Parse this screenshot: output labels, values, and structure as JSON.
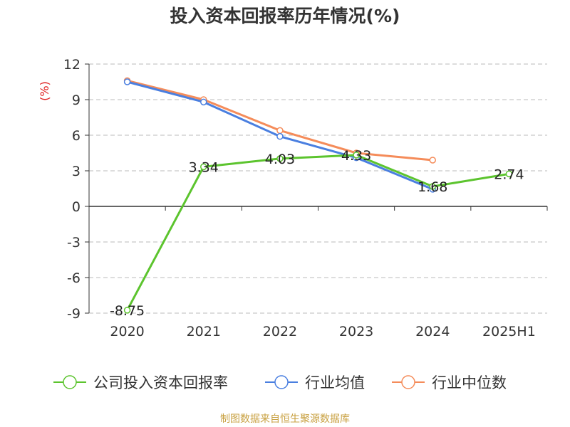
{
  "chart_data": {
    "type": "line",
    "title": "投入资本回报率历年情况(%)",
    "ylabel": "(%)",
    "categories": [
      "2020",
      "2021",
      "2022",
      "2023",
      "2024",
      "2025H1"
    ],
    "ylim": [
      -9,
      12
    ],
    "yticks": [
      "12",
      "9",
      "6",
      "3",
      "0",
      "-3",
      "-6",
      "-9"
    ],
    "grid": true,
    "legend_position": "bottom",
    "series": [
      {
        "name": "公司投入资本回报率",
        "color": "#5cc42e",
        "values": [
          -8.75,
          3.34,
          4.03,
          4.33,
          1.68,
          2.74
        ],
        "labels": [
          "-8.75",
          "3.34",
          "4.03",
          "4.33",
          "1.68",
          "2.74"
        ]
      },
      {
        "name": "行业均值",
        "color": "#4a7fe0",
        "values": [
          10.5,
          8.8,
          5.9,
          4.1,
          1.45,
          null
        ]
      },
      {
        "name": "行业中位数",
        "color": "#f58c5a",
        "values": [
          10.6,
          9.0,
          6.4,
          4.5,
          3.9,
          null
        ]
      }
    ]
  },
  "footer": {
    "source": "制图数据来自恒生聚源数据库",
    "color": "#c8a040"
  }
}
